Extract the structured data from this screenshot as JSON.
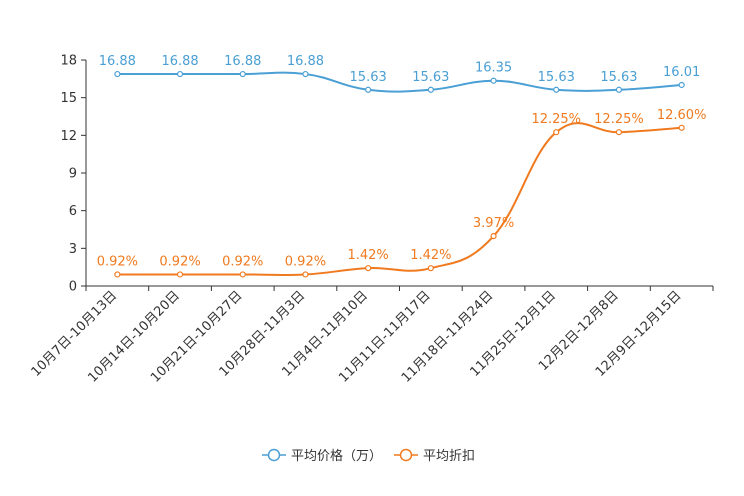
{
  "chart_data": {
    "type": "line",
    "title": "",
    "xlabel": "",
    "ylabel": "",
    "ylim": [
      0,
      18
    ],
    "yticks": [
      0,
      3,
      6,
      9,
      12,
      15,
      18
    ],
    "categories": [
      "10月7日-10月13日",
      "10月14日-10月20日",
      "10月21日-10月27日",
      "10月28日-11月3日",
      "11月4日-11月10日",
      "11月11日-11月17日",
      "11月18日-11月24日",
      "11月25日-12月1日",
      "12月2日-12月8日",
      "12月9日-12月15日"
    ],
    "series": [
      {
        "name": "平均价格（万）",
        "color": "#4a9fd4",
        "values": [
          16.88,
          16.88,
          16.88,
          16.88,
          15.63,
          15.63,
          16.35,
          15.63,
          15.63,
          16.01
        ],
        "labels": [
          "16.88",
          "16.88",
          "16.88",
          "16.88",
          "15.63",
          "15.63",
          "16.35",
          "15.63",
          "15.63",
          "16.01"
        ]
      },
      {
        "name": "平均折扣",
        "color": "#f07a1f",
        "values": [
          0.92,
          0.92,
          0.92,
          0.92,
          1.42,
          1.42,
          3.97,
          12.25,
          12.25,
          12.6
        ],
        "labels": [
          "0.92%",
          "0.92%",
          "0.92%",
          "0.92%",
          "1.42%",
          "1.42%",
          "3.97%",
          "12.25%",
          "12.25%",
          "12.60%"
        ]
      }
    ],
    "legend_position": "bottom-center",
    "grid": false
  }
}
